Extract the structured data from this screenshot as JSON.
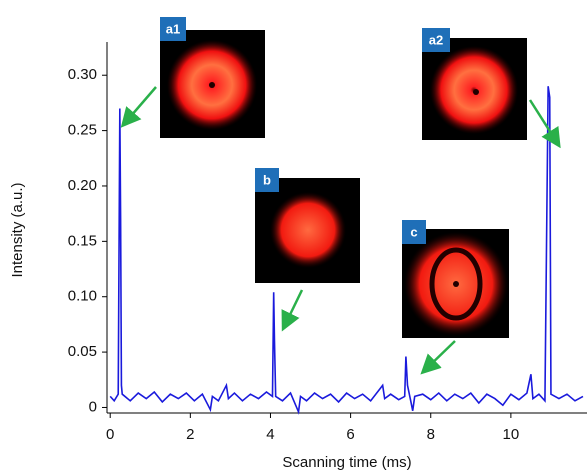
{
  "chart_data": {
    "type": "line",
    "xlabel": "Scanning time (ms)",
    "ylabel": "Intensity (a.u.)",
    "x": [
      0,
      0.1,
      0.2,
      0.24,
      0.26,
      0.28,
      0.3,
      0.5,
      0.7,
      0.9,
      1.1,
      1.3,
      1.5,
      1.7,
      1.9,
      2.1,
      2.3,
      2.5,
      2.55,
      2.7,
      2.9,
      2.95,
      3.1,
      3.3,
      3.5,
      3.7,
      3.9,
      4.05,
      4.08,
      4.1,
      4.13,
      4.3,
      4.5,
      4.7,
      4.75,
      4.9,
      5.1,
      5.3,
      5.5,
      5.7,
      5.9,
      6.1,
      6.3,
      6.5,
      6.8,
      6.85,
      7.0,
      7.2,
      7.35,
      7.38,
      7.42,
      7.5,
      7.55,
      7.6,
      7.8,
      8.0,
      8.2,
      8.4,
      8.6,
      8.8,
      9.0,
      9.2,
      9.4,
      9.6,
      9.8,
      10.0,
      10.2,
      10.4,
      10.5,
      10.55,
      10.7,
      10.85,
      10.93,
      10.97,
      11.0,
      11.2,
      11.4,
      11.6,
      11.8
    ],
    "series": [
      {
        "color": "#1a1adc",
        "values": [
          0.01,
          0.006,
          0.012,
          0.27,
          0.17,
          0.02,
          0.012,
          0.006,
          0.013,
          0.008,
          0.014,
          0.005,
          0.012,
          0.008,
          0.013,
          0.006,
          0.012,
          -0.002,
          0.01,
          0.006,
          0.02,
          0.008,
          0.013,
          0.006,
          0.012,
          0.008,
          0.014,
          0.01,
          0.104,
          0.06,
          0.01,
          0.006,
          0.013,
          -0.004,
          0.01,
          0.006,
          0.013,
          0.008,
          0.012,
          0.005,
          0.013,
          0.008,
          0.012,
          0.006,
          0.02,
          0.008,
          0.012,
          0.007,
          0.01,
          0.046,
          0.02,
          0.006,
          -0.003,
          0.01,
          0.012,
          0.007,
          0.013,
          0.006,
          0.012,
          0.008,
          0.013,
          0.004,
          0.012,
          0.008,
          0.002,
          0.012,
          0.007,
          0.013,
          0.03,
          0.008,
          0.012,
          0.006,
          0.29,
          0.28,
          0.012,
          0.008,
          0.012,
          0.006,
          0.01
        ]
      }
    ],
    "xlim": [
      -0.08,
      11.9
    ],
    "ylim": [
      -0.005,
      0.33
    ],
    "xticks": [
      0,
      2,
      4,
      6,
      8,
      10
    ],
    "yticks": [
      0,
      0.05,
      {
        "value": 0.1,
        "label": "0.10"
      },
      0.15,
      {
        "value": 0.2,
        "label": "0.20"
      },
      0.25,
      {
        "value": 0.3,
        "label": "0.30"
      }
    ],
    "insets": [
      {
        "label": "a1"
      },
      {
        "label": "b"
      },
      {
        "label": "a2"
      },
      {
        "label": "c"
      }
    ]
  }
}
